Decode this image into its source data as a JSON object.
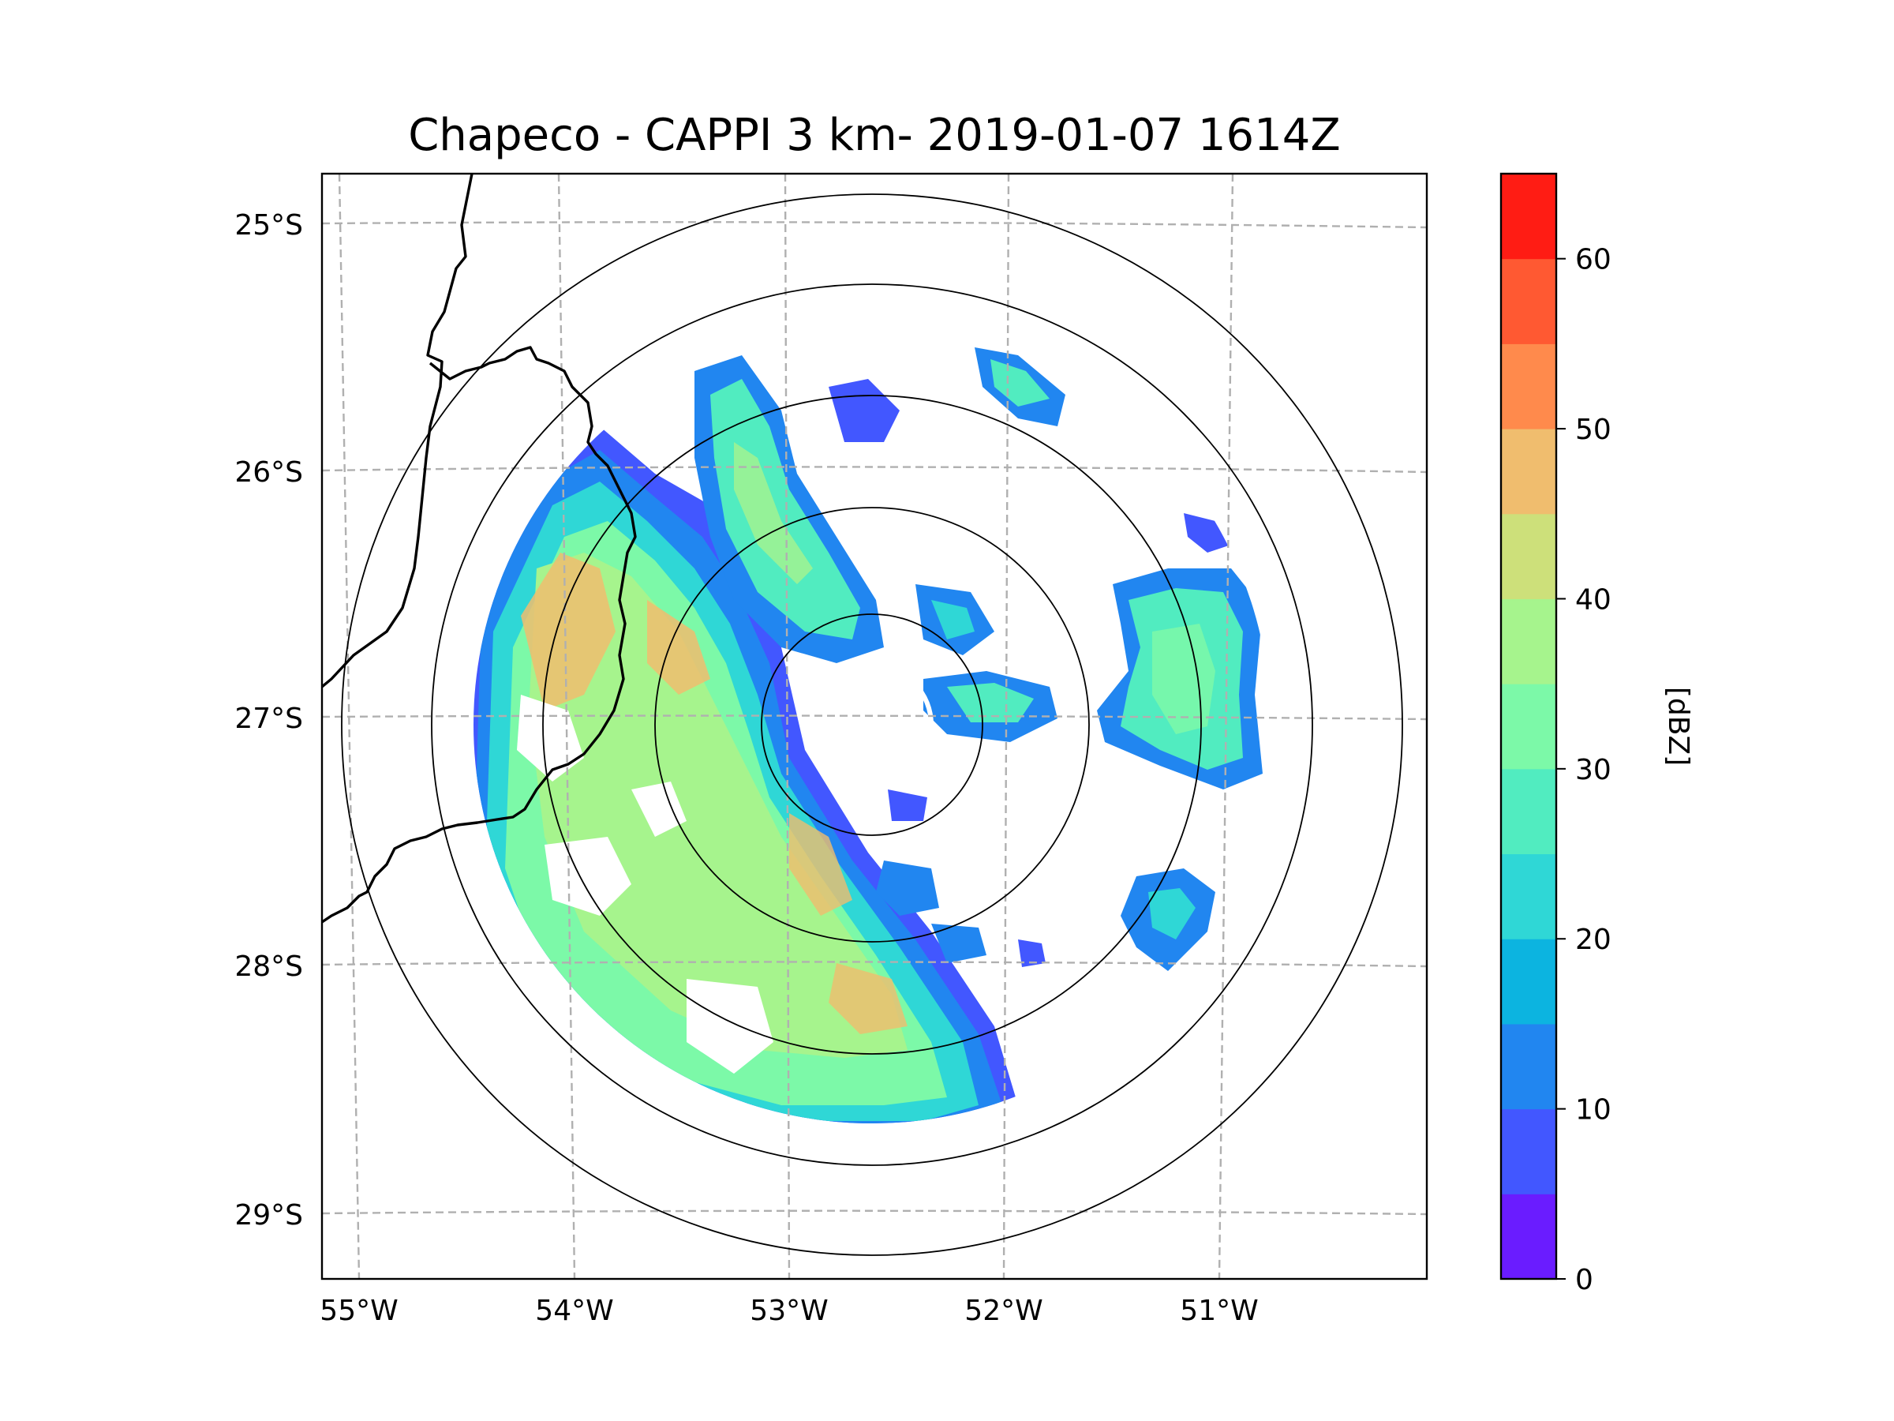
{
  "title": "Chapeco - CAPPI 3 km- 2019-01-07 1614Z",
  "map": {
    "lon_ticks": [
      "55°W",
      "54°W",
      "53°W",
      "52°W",
      "51°W"
    ],
    "lat_ticks": [
      "25°S",
      "26°S",
      "27°S",
      "28°S",
      "29°S"
    ],
    "extent": {
      "lon_min": -55.17,
      "lon_max": -50.05,
      "lat_min": -29.3,
      "lat_max": -24.8
    },
    "radar_center": {
      "lon": -52.6,
      "lat": -27.02
    },
    "range_rings_km": [
      50,
      100,
      150,
      200,
      250
    ],
    "gridlines": "dashed gray",
    "coastlines": "state and country borders",
    "field": "reflectivity CAPPI 3 km"
  },
  "colorbar": {
    "label": "[dBZ]",
    "min": 0,
    "max": 65,
    "tick_labels": [
      "0",
      "10",
      "20",
      "30",
      "40",
      "50",
      "60"
    ],
    "tick_values": [
      0,
      10,
      20,
      30,
      40,
      50,
      60
    ],
    "levels": [
      0,
      5,
      10,
      15,
      20,
      25,
      30,
      35,
      40,
      45,
      50,
      55,
      60,
      65
    ],
    "colors": [
      "#6a1cff",
      "#4257ff",
      "#2186f0",
      "#0cb4e0",
      "#2fd7d6",
      "#51ecc0",
      "#7cf9a8",
      "#a6f48d",
      "#cde07a",
      "#f0bd6e",
      "#ff8a4c",
      "#ff5932",
      "#ff1c14"
    ]
  }
}
